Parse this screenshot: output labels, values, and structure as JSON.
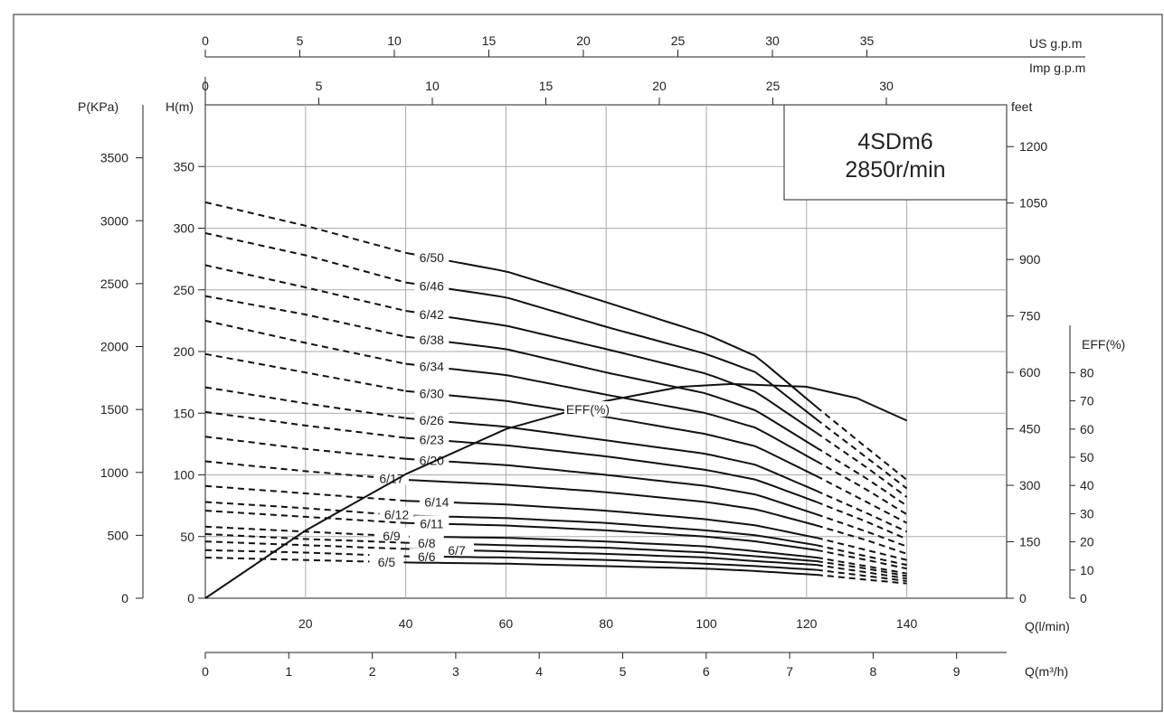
{
  "chart_data": {
    "type": "line",
    "title": "4SDm6",
    "subtitle": "2850r/min",
    "axes": {
      "q_lmin": {
        "label": "Q(l/min)",
        "range": [
          0,
          160
        ],
        "ticks": [
          "20",
          "40",
          "60",
          "80",
          "100",
          "120",
          "140"
        ]
      },
      "q_m3h": {
        "label": "Q(m³/h)",
        "range": [
          0,
          9.6
        ],
        "ticks": [
          "0",
          "1",
          "2",
          "3",
          "4",
          "5",
          "6",
          "7",
          "8",
          "9"
        ]
      },
      "us_gpm": {
        "label": "US g.p.m",
        "ticks": [
          "0",
          "5",
          "10",
          "15",
          "20",
          "25",
          "30",
          "35"
        ]
      },
      "imp_gpm": {
        "label": "Imp g.p.m",
        "ticks": [
          "0",
          "5",
          "10",
          "15",
          "20",
          "25",
          "30"
        ]
      },
      "head_m": {
        "label": "H(m)",
        "range": [
          0,
          400
        ],
        "ticks": [
          "0",
          "50",
          "100",
          "150",
          "200",
          "250",
          "300",
          "350"
        ]
      },
      "pressure_kpa": {
        "label": "P(KPa)",
        "ticks": [
          "0",
          "500",
          "1000",
          "1500",
          "2000",
          "2500",
          "3000",
          "3500"
        ]
      },
      "feet": {
        "label": "feet",
        "ticks": [
          "0",
          "150",
          "300",
          "450",
          "600",
          "750",
          "900",
          "1050",
          "1200"
        ]
      },
      "eff": {
        "label": "EFF(%)",
        "range": [
          0,
          80
        ],
        "ticks": [
          "0",
          "10",
          "20",
          "30",
          "40",
          "50",
          "60",
          "70",
          "80"
        ]
      }
    },
    "grid": true,
    "efficiency": {
      "label": "EFF(%)",
      "x": [
        0,
        20,
        40,
        60,
        80,
        95,
        105,
        120,
        130,
        140
      ],
      "y": [
        0,
        24,
        44,
        60,
        70,
        75,
        76,
        75,
        71,
        63
      ]
    },
    "series": [
      {
        "name": "6/50",
        "label_x": 45,
        "h": [
          321,
          302,
          280,
          265,
          240,
          214,
          196,
          155,
          122,
          96
        ]
      },
      {
        "name": "6/46",
        "label_x": 45,
        "h": [
          296,
          278,
          256,
          244,
          220,
          198,
          183,
          145,
          114,
          89
        ]
      },
      {
        "name": "6/42",
        "label_x": 45,
        "h": [
          270,
          252,
          233,
          221,
          202,
          182,
          167,
          134,
          106,
          82
        ]
      },
      {
        "name": "6/38",
        "label_x": 45,
        "h": [
          245,
          230,
          212,
          202,
          183,
          166,
          152,
          122,
          97,
          75
        ]
      },
      {
        "name": "6/34",
        "label_x": 45,
        "h": [
          225,
          207,
          190,
          181,
          165,
          150,
          138,
          111,
          88,
          68
        ]
      },
      {
        "name": "6/30",
        "label_x": 45,
        "h": [
          198,
          183,
          168,
          160,
          147,
          133,
          123,
          99,
          78,
          61
        ]
      },
      {
        "name": "6/26",
        "label_x": 45,
        "h": [
          171,
          158,
          146,
          139,
          128,
          117,
          108,
          87,
          69,
          54
        ]
      },
      {
        "name": "6/23",
        "label_x": 45,
        "h": [
          151,
          140,
          130,
          124,
          115,
          104,
          96,
          78,
          62,
          48
        ]
      },
      {
        "name": "6/20",
        "label_x": 45,
        "h": [
          131,
          121,
          113,
          108,
          100,
          91,
          84,
          68,
          54,
          42
        ]
      },
      {
        "name": "6/17",
        "label_x": 37,
        "h": [
          111,
          103,
          96,
          92,
          86,
          78,
          72,
          59,
          47,
          36
        ]
      },
      {
        "name": "6/14",
        "label_x": 46,
        "h": [
          91,
          85,
          79,
          76,
          71,
          64,
          59,
          49,
          39,
          31
        ]
      },
      {
        "name": "6/12",
        "label_x": 38,
        "h": [
          78,
          73,
          67,
          65,
          61,
          55,
          51,
          43,
          34,
          27
        ]
      },
      {
        "name": "6/11",
        "label_x": 45,
        "h": [
          71,
          66,
          61,
          59,
          55,
          50,
          46,
          39,
          31,
          24
        ]
      },
      {
        "name": "6/9",
        "label_x": 37,
        "h": [
          58,
          54,
          50,
          49,
          46,
          42,
          38,
          33,
          26,
          20
        ]
      },
      {
        "name": "6/8",
        "label_x": 44,
        "h": [
          52,
          48,
          45,
          43,
          41,
          37,
          34,
          30,
          24,
          18
        ]
      },
      {
        "name": "6/7",
        "label_x": 50,
        "h": [
          46,
          43,
          40,
          38,
          36,
          33,
          30,
          27,
          21,
          16
        ]
      },
      {
        "name": "6/6",
        "label_x": 44,
        "h": [
          39,
          37,
          34,
          33,
          31,
          28,
          26,
          23,
          18,
          14
        ]
      },
      {
        "name": "6/5",
        "label_x": 36,
        "h": [
          33,
          31,
          29,
          28,
          26,
          24,
          22,
          19,
          15,
          12
        ]
      }
    ],
    "x_samples": [
      0,
      20,
      40,
      60,
      80,
      100,
      110,
      122,
      132,
      140
    ],
    "dashed_segments": {
      "low_end": [
        0,
        40
      ],
      "high_end": [
        122,
        140
      ]
    }
  }
}
